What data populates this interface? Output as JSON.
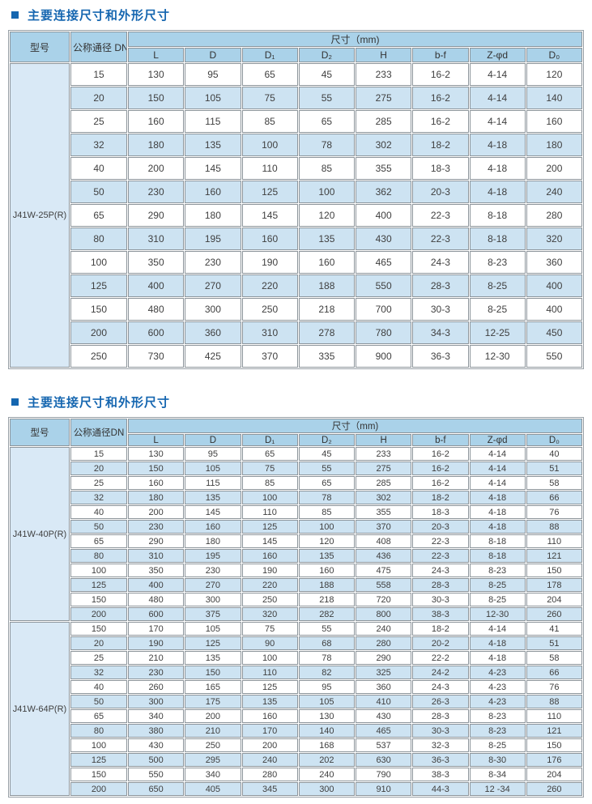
{
  "colors": {
    "title_blue": "#1566b0",
    "header_bg": "#aad2e9",
    "stripe_bg": "#cde3f2",
    "model_col_bg": "#d9e9f6",
    "border_gray": "#8d959b"
  },
  "sections": [
    {
      "title": "主要连接尺寸和外形尺寸",
      "header": {
        "model": "型号",
        "dn": "公称通径 DN",
        "size_group": "尺寸（mm)",
        "columns": [
          "L",
          "D",
          "D₁",
          "D₂",
          "H",
          "b-f",
          "Z-φd",
          "D₀"
        ]
      },
      "groups": [
        {
          "model": "J41W-25P(R)",
          "rows": [
            [
              "15",
              "130",
              "95",
              "65",
              "45",
              "233",
              "16-2",
              "4-14",
              "120"
            ],
            [
              "20",
              "150",
              "105",
              "75",
              "55",
              "275",
              "16-2",
              "4-14",
              "140"
            ],
            [
              "25",
              "160",
              "115",
              "85",
              "65",
              "285",
              "16-2",
              "4-14",
              "160"
            ],
            [
              "32",
              "180",
              "135",
              "100",
              "78",
              "302",
              "18-2",
              "4-18",
              "180"
            ],
            [
              "40",
              "200",
              "145",
              "110",
              "85",
              "355",
              "18-3",
              "4-18",
              "200"
            ],
            [
              "50",
              "230",
              "160",
              "125",
              "100",
              "362",
              "20-3",
              "4-18",
              "240"
            ],
            [
              "65",
              "290",
              "180",
              "145",
              "120",
              "400",
              "22-3",
              "8-18",
              "280"
            ],
            [
              "80",
              "310",
              "195",
              "160",
              "135",
              "430",
              "22-3",
              "8-18",
              "320"
            ],
            [
              "100",
              "350",
              "230",
              "190",
              "160",
              "465",
              "24-3",
              "8-23",
              "360"
            ],
            [
              "125",
              "400",
              "270",
              "220",
              "188",
              "550",
              "28-3",
              "8-25",
              "400"
            ],
            [
              "150",
              "480",
              "300",
              "250",
              "218",
              "700",
              "30-3",
              "8-25",
              "400"
            ],
            [
              "200",
              "600",
              "360",
              "310",
              "278",
              "780",
              "34-3",
              "12-25",
              "450"
            ],
            [
              "250",
              "730",
              "425",
              "370",
              "335",
              "900",
              "36-3",
              "12-30",
              "550"
            ]
          ]
        }
      ]
    },
    {
      "title": "主要连接尺寸和外形尺寸",
      "header": {
        "model": "型号",
        "dn": "公称通径DN",
        "size_group": "尺寸（mm)",
        "columns": [
          "L",
          "D",
          "D₁",
          "D₂",
          "H",
          "b-f",
          "Z-φd",
          "D₀"
        ]
      },
      "groups": [
        {
          "model": "J41W-40P(R)",
          "rows": [
            [
              "15",
              "130",
              "95",
              "65",
              "45",
              "233",
              "16-2",
              "4-14",
              "40"
            ],
            [
              "20",
              "150",
              "105",
              "75",
              "55",
              "275",
              "16-2",
              "4-14",
              "51"
            ],
            [
              "25",
              "160",
              "115",
              "85",
              "65",
              "285",
              "16-2",
              "4-14",
              "58"
            ],
            [
              "32",
              "180",
              "135",
              "100",
              "78",
              "302",
              "18-2",
              "4-18",
              "66"
            ],
            [
              "40",
              "200",
              "145",
              "110",
              "85",
              "355",
              "18-3",
              "4-18",
              "76"
            ],
            [
              "50",
              "230",
              "160",
              "125",
              "100",
              "370",
              "20-3",
              "4-18",
              "88"
            ],
            [
              "65",
              "290",
              "180",
              "145",
              "120",
              "408",
              "22-3",
              "8-18",
              "110"
            ],
            [
              "80",
              "310",
              "195",
              "160",
              "135",
              "436",
              "22-3",
              "8-18",
              "121"
            ],
            [
              "100",
              "350",
              "230",
              "190",
              "160",
              "475",
              "24-3",
              "8-23",
              "150"
            ],
            [
              "125",
              "400",
              "270",
              "220",
              "188",
              "558",
              "28-3",
              "8-25",
              "178"
            ],
            [
              "150",
              "480",
              "300",
              "250",
              "218",
              "720",
              "30-3",
              "8-25",
              "204"
            ],
            [
              "200",
              "600",
              "375",
              "320",
              "282",
              "800",
              "38-3",
              "12-30",
              "260"
            ]
          ]
        },
        {
          "model": "J41W-64P(R)",
          "rows": [
            [
              "150",
              "170",
              "105",
              "75",
              "55",
              "240",
              "18-2",
              "4-14",
              "41"
            ],
            [
              "20",
              "190",
              "125",
              "90",
              "68",
              "280",
              "20-2",
              "4-18",
              "51"
            ],
            [
              "25",
              "210",
              "135",
              "100",
              "78",
              "290",
              "22-2",
              "4-18",
              "58"
            ],
            [
              "32",
              "230",
              "150",
              "110",
              "82",
              "325",
              "24-2",
              "4-23",
              "66"
            ],
            [
              "40",
              "260",
              "165",
              "125",
              "95",
              "360",
              "24-3",
              "4-23",
              "76"
            ],
            [
              "50",
              "300",
              "175",
              "135",
              "105",
              "410",
              "26-3",
              "4-23",
              "88"
            ],
            [
              "65",
              "340",
              "200",
              "160",
              "130",
              "430",
              "28-3",
              "8-23",
              "110"
            ],
            [
              "80",
              "380",
              "210",
              "170",
              "140",
              "465",
              "30-3",
              "8-23",
              "121"
            ],
            [
              "100",
              "430",
              "250",
              "200",
              "168",
              "537",
              "32-3",
              "8-25",
              "150"
            ],
            [
              "125",
              "500",
              "295",
              "240",
              "202",
              "630",
              "36-3",
              "8-30",
              "176"
            ],
            [
              "150",
              "550",
              "340",
              "280",
              "240",
              "790",
              "38-3",
              "8-34",
              "204"
            ],
            [
              "200",
              "650",
              "405",
              "345",
              "300",
              "910",
              "44-3",
              "12 -34",
              "260"
            ]
          ]
        }
      ]
    }
  ]
}
